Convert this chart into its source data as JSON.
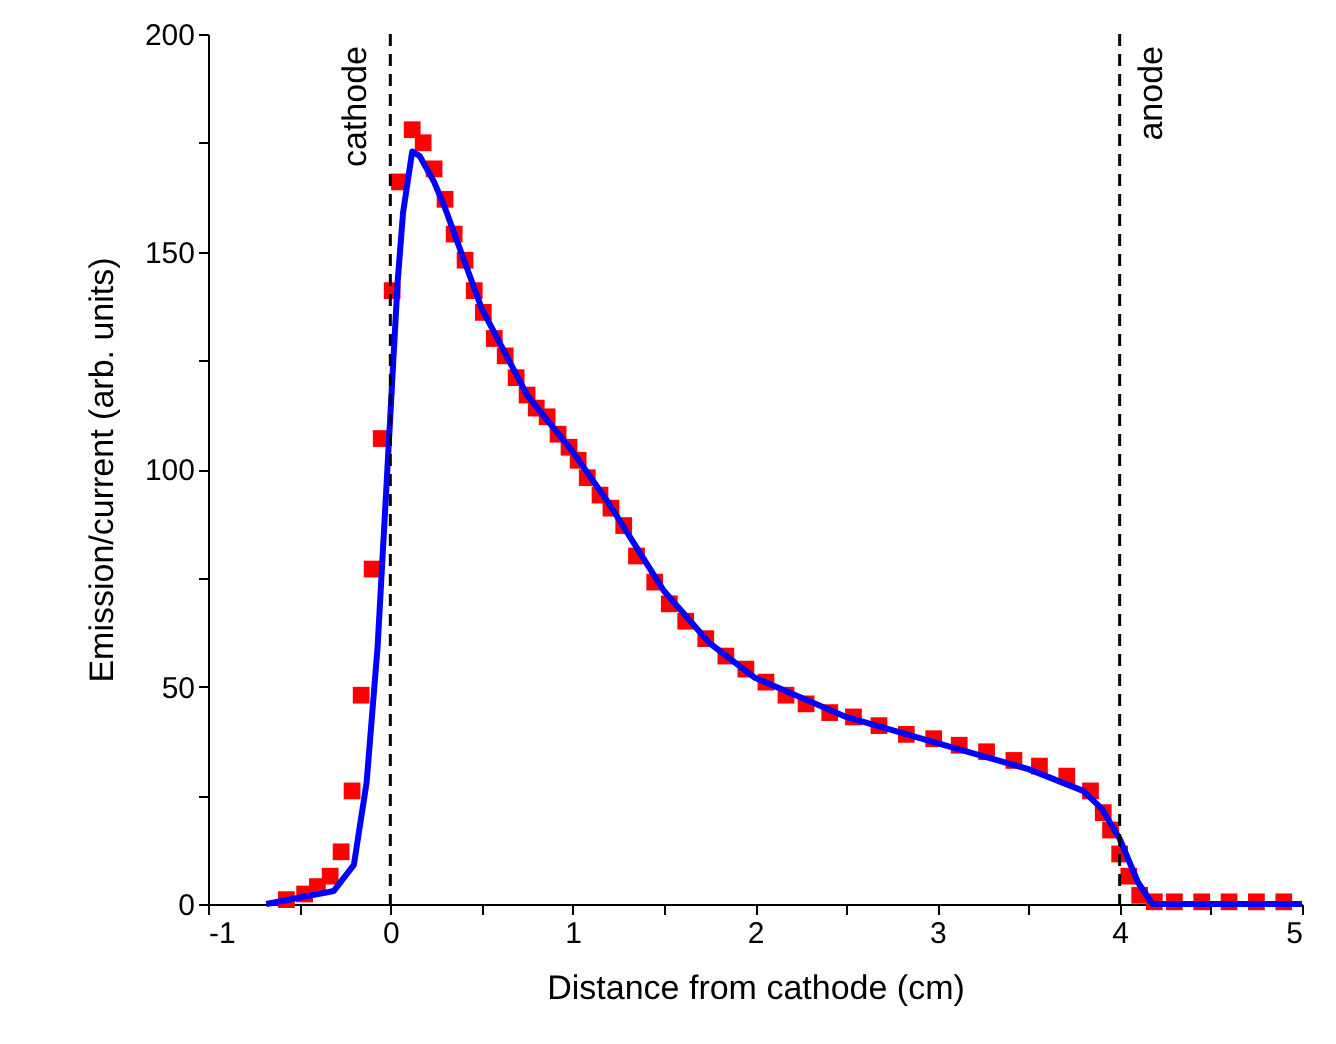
{
  "chart_data": {
    "type": "scatter",
    "xlabel": "Distance from cathode (cm)",
    "ylabel": "Emission/current (arb. units)",
    "xlim": [
      -1,
      5
    ],
    "ylim": [
      0,
      200
    ],
    "xticks": [
      -1,
      {
        "value": -0.5,
        "label": null
      },
      0,
      {
        "value": 0.5,
        "label": null
      },
      1,
      {
        "value": 1.5,
        "label": null
      },
      2,
      {
        "value": 2.5,
        "label": null
      },
      3,
      {
        "value": 3.5,
        "label": null
      },
      4,
      {
        "value": 4.5,
        "label": null
      },
      5
    ],
    "yticks": [
      0,
      {
        "value": 25,
        "label": null
      },
      50,
      {
        "value": 75,
        "label": null
      },
      100,
      {
        "value": 125,
        "label": null
      },
      150,
      {
        "value": 175,
        "label": null
      },
      200
    ],
    "series": [
      {
        "marker": "square",
        "color": "#ff0000",
        "x": [
          -0.57,
          -0.47,
          -0.4,
          -0.33,
          -0.27,
          -0.21,
          -0.16,
          -0.1,
          -0.05,
          0.01,
          0.05,
          0.12,
          0.18,
          0.24,
          0.3,
          0.35,
          0.41,
          0.46,
          0.51,
          0.57,
          0.63,
          0.69,
          0.75,
          0.8,
          0.86,
          0.92,
          0.98,
          1.03,
          1.08,
          1.15,
          1.21,
          1.28,
          1.35,
          1.45,
          1.53,
          1.62,
          1.73,
          1.84,
          1.95,
          2.06,
          2.17,
          2.28,
          2.41,
          2.54,
          2.68,
          2.83,
          2.98,
          3.12,
          3.27,
          3.42,
          3.56,
          3.71,
          3.84,
          3.91,
          3.95,
          4.0,
          4.05,
          4.11,
          4.19,
          4.3,
          4.45,
          4.6,
          4.75,
          4.9
        ],
        "values": [
          1,
          2.3,
          4,
          6.4,
          12,
          26,
          48,
          77,
          107,
          141,
          166,
          178,
          175,
          169,
          162,
          154,
          148,
          141,
          136,
          130,
          126,
          121,
          117,
          114,
          112,
          108,
          105,
          102,
          98,
          94,
          91,
          87,
          80,
          74,
          69,
          65,
          61,
          57,
          54,
          51,
          48,
          46,
          44,
          43,
          41,
          39,
          38,
          36.5,
          35,
          33,
          31.7,
          29.4,
          26,
          21,
          17,
          11.5,
          6.4,
          2,
          0.5,
          0.5,
          0.5,
          0.5,
          0.5,
          0.5
        ]
      },
      {
        "type": "line",
        "line_style": "solid",
        "color": "#0000ff",
        "x": [
          -0.68,
          -0.31,
          -0.2,
          -0.13,
          -0.07,
          -0.02,
          0.04,
          0.07,
          0.12,
          0.16,
          0.24,
          0.3,
          0.5,
          0.75,
          1.0,
          1.2,
          1.5,
          1.75,
          2.0,
          2.5,
          3.0,
          3.5,
          3.8,
          3.9,
          4.0,
          4.1,
          4.18,
          5.0
        ],
        "values": [
          0,
          3,
          9,
          28,
          59,
          97,
          143,
          159,
          173,
          172,
          166,
          160,
          137,
          117,
          104,
          92,
          72,
          60,
          52,
          43,
          37,
          31,
          26,
          22,
          15,
          5,
          0,
          0
        ]
      }
    ],
    "ref_lines": [
      {
        "axis": "x",
        "value": 0,
        "label": "cathode",
        "line_style": "dashed",
        "color": "#000000"
      },
      {
        "axis": "x",
        "value": 4,
        "label": "anode",
        "line_style": "dashed",
        "color": "#000000"
      }
    ]
  }
}
